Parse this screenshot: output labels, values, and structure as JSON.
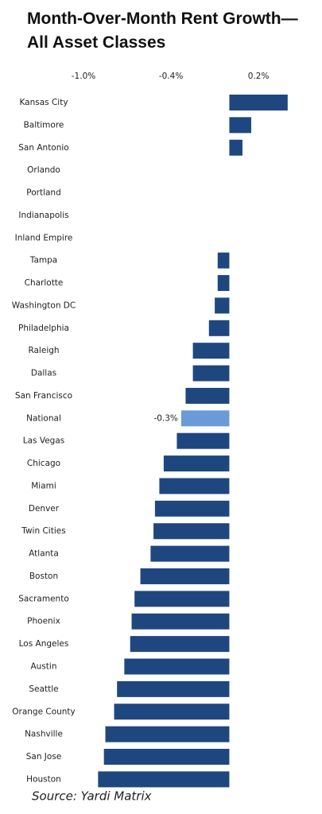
{
  "chart_data": {
    "type": "hbar",
    "title": [
      "Month-Over-Month Rent Growth—",
      "All Asset Classes"
    ],
    "source": "Source: Yardi Matrix",
    "categories": [
      "Kansas City",
      "Baltimore",
      "San Antonio",
      "Orlando",
      "Portland",
      "Indianapolis",
      "Inland Empire",
      "Tampa",
      "Charlotte",
      "Washington DC",
      "Philadelphia",
      "Raleigh",
      "Dallas",
      "San Francisco",
      "National",
      "Las Vegas",
      "Chicago",
      "Miami",
      "Denver",
      "Twin Cities",
      "Atlanta",
      "Boston",
      "Sacramento",
      "Phoenix",
      "Los Angeles",
      "Austin",
      "Seattle",
      "Orange County",
      "Nashville",
      "San Jose",
      "Houston"
    ],
    "values": [
      0.4,
      0.15,
      0.09,
      0,
      0,
      0,
      0,
      -0.08,
      -0.08,
      -0.1,
      -0.14,
      -0.25,
      -0.25,
      -0.3,
      -0.33,
      -0.36,
      -0.45,
      -0.48,
      -0.51,
      -0.52,
      -0.54,
      -0.61,
      -0.65,
      -0.67,
      -0.68,
      -0.72,
      -0.77,
      -0.79,
      -0.85,
      -0.86,
      -0.9
    ],
    "value_labels": [
      null,
      null,
      null,
      null,
      null,
      null,
      null,
      null,
      null,
      null,
      null,
      null,
      null,
      null,
      "-0.3%",
      null,
      null,
      null,
      null,
      null,
      null,
      null,
      null,
      null,
      null,
      null,
      null,
      null,
      null,
      null,
      null
    ],
    "colors": [
      "#1f477f",
      "#1f477f",
      "#1f477f",
      "#1f477f",
      "#1f477f",
      "#1f477f",
      "#1f477f",
      "#1f477f",
      "#1f477f",
      "#1f477f",
      "#1f477f",
      "#1f477f",
      "#1f477f",
      "#1f477f",
      "#6a9bd8",
      "#1f477f",
      "#1f477f",
      "#1f477f",
      "#1f477f",
      "#1f477f",
      "#1f477f",
      "#1f477f",
      "#1f477f",
      "#1f477f",
      "#1f477f",
      "#1f477f",
      "#1f477f",
      "#1f477f",
      "#1f477f",
      "#1f477f",
      "#1f477f"
    ],
    "xlim": [
      -1.0,
      0.45
    ],
    "xticks": [
      {
        "value": -1.0,
        "label": "-1.0%"
      },
      {
        "value": -0.4,
        "label": "-0.4%"
      },
      {
        "value": 0.2,
        "label": "0.2%"
      }
    ]
  }
}
